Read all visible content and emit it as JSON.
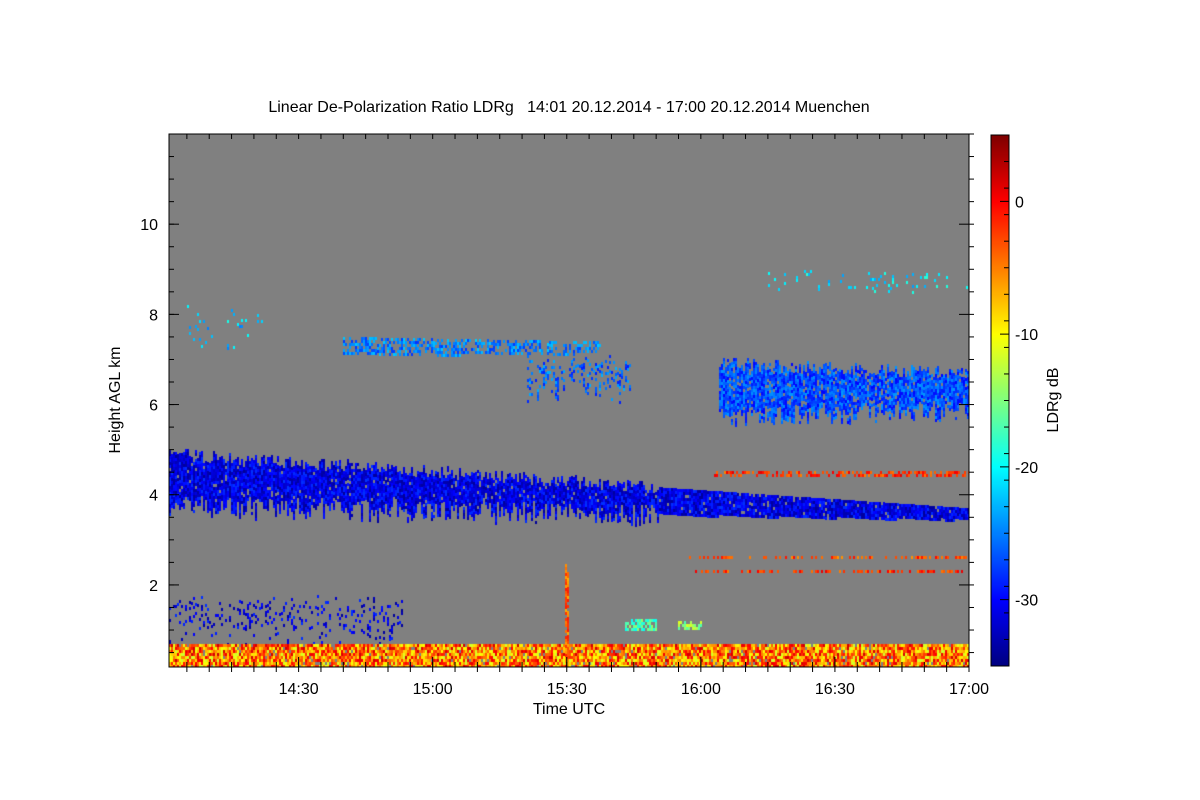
{
  "chart_data": {
    "type": "heatmap",
    "title": "Linear De-Polarization Ratio LDRg   14:01 20.12.2014 - 17:00 20.12.2014 Muenchen",
    "xlabel": "Time UTC",
    "ylabel": "Height AGL km",
    "xlim_minutes_utc": [
      841,
      1020
    ],
    "ylim": [
      0.18,
      12.0
    ],
    "x_ticks": [
      {
        "label": "14:30",
        "minute": 870
      },
      {
        "label": "15:00",
        "minute": 900
      },
      {
        "label": "15:30",
        "minute": 930
      },
      {
        "label": "16:00",
        "minute": 960
      },
      {
        "label": "16:30",
        "minute": 990
      },
      {
        "label": "17:00",
        "minute": 1020
      }
    ],
    "y_ticks": [
      {
        "label": "2",
        "value": 2
      },
      {
        "label": "4",
        "value": 4
      },
      {
        "label": "6",
        "value": 6
      },
      {
        "label": "8",
        "value": 8
      },
      {
        "label": "10",
        "value": 10
      }
    ],
    "colorbar": {
      "label": "LDRg dB",
      "range": [
        -35,
        5
      ],
      "colormap": "jet",
      "ticks": [
        {
          "label": "0",
          "value": 0
        },
        {
          "label": "-10",
          "value": -10
        },
        {
          "label": "-20",
          "value": -20
        },
        {
          "label": "-30",
          "value": -30
        }
      ]
    },
    "background_color": "#808080",
    "features": [
      {
        "name": "mid-level cloud layer",
        "t": [
          841,
          1020
        ],
        "base_km": [
          3.75,
          3.45
        ],
        "top_km": [
          4.9,
          3.7
        ],
        "ldr_db": -31,
        "density": 0.95
      },
      {
        "name": "upper cloud layer",
        "t": [
          964,
          1020
        ],
        "base_km": [
          5.7,
          5.9
        ],
        "top_km": [
          6.9,
          6.7
        ],
        "ldr_db": -27,
        "density": 0.9
      },
      {
        "name": "thin cirrus",
        "t": [
          880,
          938
        ],
        "base_km": [
          7.1,
          7.15
        ],
        "top_km": [
          7.5,
          7.4
        ],
        "ldr_db": -25,
        "density": 0.55
      },
      {
        "name": "cirrus fall streaks",
        "t": [
          921,
          944
        ],
        "base_km": [
          6.3,
          6.3
        ],
        "top_km": [
          7.0,
          7.0
        ],
        "ldr_db": -26,
        "density": 0.35
      },
      {
        "name": "sparse high ice",
        "t": [
          975,
          1020
        ],
        "base_km": [
          8.6,
          8.5
        ],
        "top_km": [
          9.0,
          8.9
        ],
        "ldr_db": -21,
        "density": 0.08
      },
      {
        "name": "sparse high ice early",
        "t": [
          845,
          862
        ],
        "base_km": [
          7.3,
          7.5
        ],
        "top_km": [
          8.1,
          8.0
        ],
        "ldr_db": -22,
        "density": 0.06
      },
      {
        "name": "low-level clutter",
        "t": [
          841,
          893
        ],
        "base_km": [
          0.9,
          0.9
        ],
        "top_km": [
          1.7,
          1.6
        ],
        "ldr_db": -31,
        "density": 0.18
      },
      {
        "name": "liquid patch",
        "t": [
          943,
          950
        ],
        "base_km": [
          1.0,
          1.0
        ],
        "top_km": [
          1.25,
          1.25
        ],
        "ldr_db": -17,
        "density": 0.8
      },
      {
        "name": "liquid patch 2",
        "t": [
          955,
          960
        ],
        "base_km": [
          1.05,
          1.05
        ],
        "top_km": [
          1.2,
          1.2
        ],
        "ldr_db": -14,
        "density": 0.7
      },
      {
        "name": "boundary layer",
        "t": [
          841,
          1020
        ],
        "base_km": [
          0.2,
          0.2
        ],
        "top_km": [
          0.7,
          0.7
        ],
        "ldr_db": -5,
        "density": 0.95
      },
      {
        "name": "artifact line 4.5 km",
        "t": [
          963,
          1020
        ],
        "base_km": [
          4.45,
          4.45
        ],
        "top_km": [
          4.52,
          4.52
        ],
        "ldr_db": -2,
        "density": 0.5
      },
      {
        "name": "artifact line 2.6 km",
        "t": [
          956,
          1020
        ],
        "base_km": [
          2.58,
          2.58
        ],
        "top_km": [
          2.64,
          2.64
        ],
        "ldr_db": -3,
        "density": 0.4
      },
      {
        "name": "artifact line 2.3 km",
        "t": [
          956,
          1020
        ],
        "base_km": [
          2.28,
          2.28
        ],
        "top_km": [
          2.34,
          2.34
        ],
        "ldr_db": -2,
        "density": 0.4
      },
      {
        "name": "spike",
        "t": [
          929.6,
          930.4
        ],
        "base_km": [
          0.2,
          0.2
        ],
        "top_km": [
          2.35,
          2.35
        ],
        "ldr_db": -4,
        "density": 0.9
      }
    ]
  }
}
